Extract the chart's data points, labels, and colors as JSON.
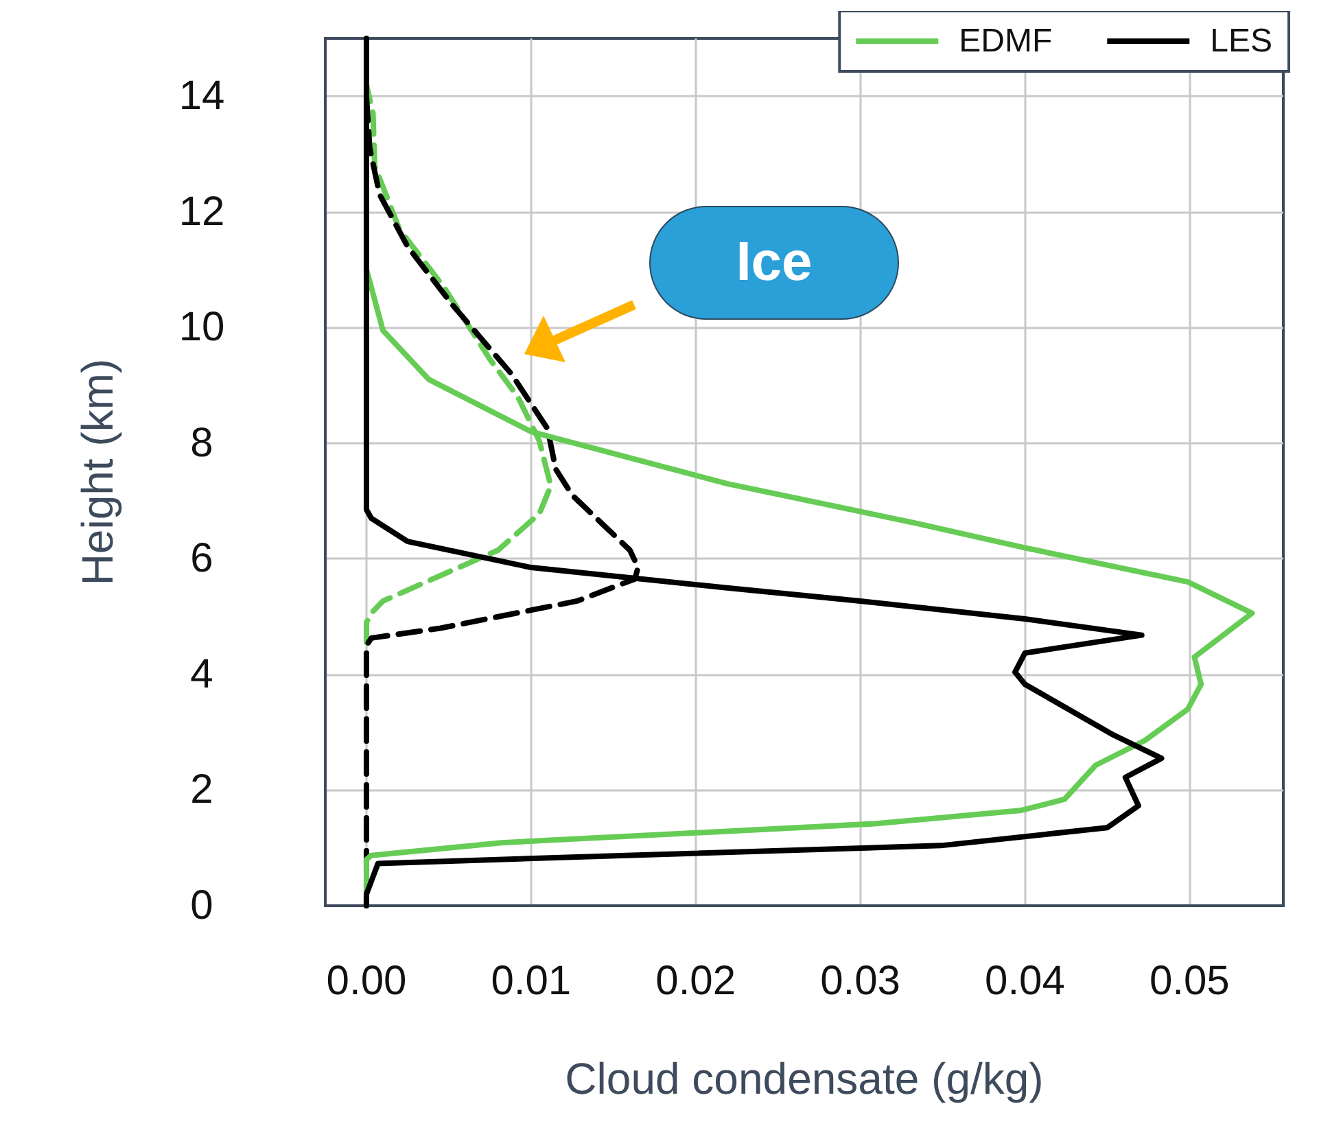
{
  "chart_data": {
    "type": "line",
    "xlabel": "Cloud condensate (g/kg)",
    "ylabel": "Height (km)",
    "xlim": [
      -0.0025,
      0.0557
    ],
    "ylim": [
      0,
      15
    ],
    "xticks": [
      {
        "value": 0,
        "label": "0.00"
      },
      {
        "value": 0.01,
        "label": "0.01"
      },
      {
        "value": 0.02,
        "label": "0.02"
      },
      {
        "value": 0.03,
        "label": "0.03"
      },
      {
        "value": 0.04,
        "label": "0.04"
      },
      {
        "value": 0.05,
        "label": "0.05"
      }
    ],
    "yticks": [
      0,
      2,
      4,
      6,
      8,
      10,
      12,
      14
    ],
    "grid": true,
    "legend": "top right",
    "annotations": [
      "Ice"
    ],
    "series": [
      {
        "name": "EDMF",
        "color": "#66cc55",
        "line_style": "solid",
        "x": [
          0,
          0,
          0.0003,
          0.0082,
          0.031,
          0.0398,
          0.0424,
          0.0443,
          0.0473,
          0.0499,
          0.0507,
          0.0503,
          0.0538,
          0.0499,
          0.04,
          0.0333,
          0.0219,
          0.01,
          0.0038,
          0.001,
          0.0002,
          0,
          0
        ],
        "values": [
          0,
          0.8,
          0.87,
          1.09,
          1.42,
          1.65,
          1.84,
          2.43,
          2.86,
          3.4,
          3.83,
          4.3,
          5.06,
          5.6,
          6.19,
          6.62,
          7.3,
          8.2,
          9.1,
          9.95,
          10.8,
          11,
          15
        ]
      },
      {
        "name": "LES",
        "color": "#000000",
        "line_style": "solid",
        "x": [
          0,
          0,
          0.0007,
          0.0158,
          0.0349,
          0.045,
          0.0469,
          0.0461,
          0.0483,
          0.0454,
          0.04,
          0.0394,
          0.04,
          0.0471,
          0.04,
          0.03,
          0.0218,
          0.01,
          0.0025,
          0.0003,
          0,
          0
        ],
        "values": [
          0,
          0.2,
          0.73,
          0.87,
          1.04,
          1.35,
          1.73,
          2.22,
          2.55,
          2.95,
          3.83,
          4.04,
          4.37,
          4.68,
          4.96,
          5.27,
          5.5,
          5.85,
          6.3,
          6.7,
          6.85,
          15
        ]
      },
      {
        "color": "#66cc55",
        "line_style": "dashed",
        "x": [
          0,
          0,
          0.0003,
          0.001,
          0.008,
          0.0105,
          0.0112,
          0.0105,
          0.0092,
          0.0075,
          0.0047,
          0.002,
          0.0005,
          0.0004,
          0
        ],
        "values": [
          0,
          4.9,
          5.06,
          5.27,
          6.15,
          6.78,
          7.26,
          8.04,
          8.8,
          9.45,
          10.7,
          11.7,
          12.8,
          13.7,
          14.2
        ]
      },
      {
        "color": "#000000",
        "line_style": "dashed",
        "x": [
          0,
          0,
          0.0003,
          0.0045,
          0.0128,
          0.0163,
          0.0165,
          0.016,
          0.0125,
          0.0115,
          0.011,
          0.0088,
          0.0052,
          0.0025,
          0.0008,
          0.0002,
          0
        ],
        "values": [
          0,
          4.5,
          4.63,
          4.8,
          5.27,
          5.65,
          5.85,
          6.15,
          7.1,
          7.55,
          8.25,
          9.2,
          10.4,
          11.4,
          12.3,
          13.1,
          14
        ]
      }
    ]
  }
}
